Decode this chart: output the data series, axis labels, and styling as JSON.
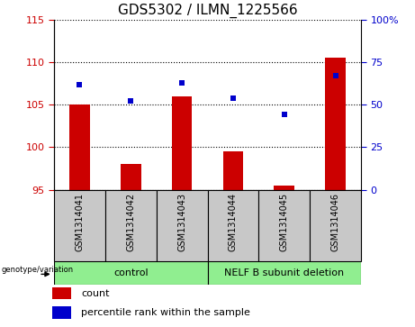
{
  "title": "GDS5302 / ILMN_1225566",
  "samples": [
    "GSM1314041",
    "GSM1314042",
    "GSM1314043",
    "GSM1314044",
    "GSM1314045",
    "GSM1314046"
  ],
  "counts": [
    105.0,
    98.0,
    106.0,
    99.5,
    95.5,
    110.5
  ],
  "percentiles": [
    62,
    52,
    63,
    54,
    44,
    67
  ],
  "ylim_left": [
    95,
    115
  ],
  "ylim_right": [
    0,
    100
  ],
  "yticks_left": [
    95,
    100,
    105,
    110,
    115
  ],
  "yticks_right": [
    0,
    25,
    50,
    75,
    100
  ],
  "ytick_labels_right": [
    "0",
    "25",
    "50",
    "75",
    "100%"
  ],
  "bar_color": "#cc0000",
  "dot_color": "#0000cc",
  "bar_width": 0.4,
  "green_color": "#90ee90",
  "gray_color": "#c8c8c8",
  "control_label": "control",
  "deletion_label": "NELF B subunit deletion",
  "genotype_label": "genotype/variation",
  "legend_count": "count",
  "legend_percentile": "percentile rank within the sample",
  "title_fontsize": 11,
  "tick_fontsize": 8,
  "label_fontsize": 7,
  "group_fontsize": 8
}
